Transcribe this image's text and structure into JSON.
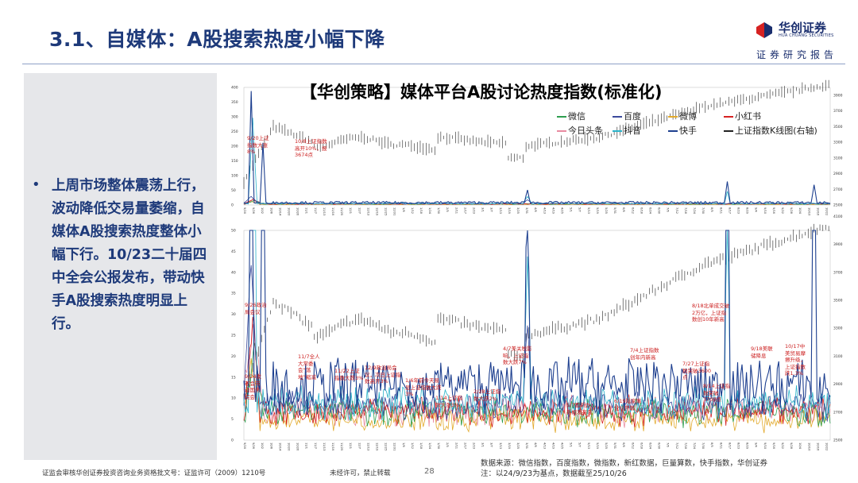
{
  "slide": {
    "title": "3.1、自媒体：A股搜索热度小幅下降",
    "logo": {
      "name": "华创证券",
      "subname": "HUA CHUANG SECURITIES"
    },
    "report_tag": "证券研究报告",
    "bullet_symbol": "•",
    "summary": "上周市场整体震荡上行，波动降低交易量萎缩，自媒体A股搜索热度整体小幅下行。10/23二十届四中全会公报发布，带动快手A股搜索热度明显上行。",
    "footer": {
      "license": "证监会审核华创证券投资咨询业务资格批文号：证监许可（2009）1210号",
      "notice": "未经许可，禁止转载",
      "page": "28",
      "source": "数据来源：微信指数，百度指数，微指数，新红数据，巨量算数，快手指数，华创证券",
      "note": "注：以24/9/23为基点，数据截至25/10/26"
    }
  },
  "colors": {
    "wechat": "#2e9e4f",
    "baidu": "#3b4a9c",
    "weibo": "#e2a92a",
    "xiaohongshu": "#d62222",
    "toutiao": "#e88aa0",
    "douyin": "#2bb3c9",
    "kuaishou": "#1d3f8f",
    "kline": "#222222",
    "annotation": "#cc2020"
  },
  "chart_data": {
    "type": "line",
    "title": "【华创策略】媒体平台A股讨论热度指数(标准化)",
    "legend": [
      {
        "key": "wechat",
        "label": "微信"
      },
      {
        "key": "baidu",
        "label": "百度"
      },
      {
        "key": "weibo",
        "label": "微博"
      },
      {
        "key": "xiaohongshu",
        "label": "小红书"
      },
      {
        "key": "toutiao",
        "label": "今日头条"
      },
      {
        "key": "douyin",
        "label": "抖音"
      },
      {
        "key": "kuaishou",
        "label": "快手"
      },
      {
        "key": "kline",
        "label": "上证指数K线图(右轴)"
      }
    ],
    "top_panel": {
      "ylim": [
        0,
        400
      ],
      "yticks": [
        0,
        50,
        100,
        150,
        200,
        250,
        300,
        350,
        400
      ],
      "y2lim": [
        2500,
        4000
      ],
      "y2ticks": [
        2500,
        2700,
        2900,
        3100,
        3300,
        3500,
        3700,
        3900
      ],
      "annotations": [
        {
          "text": "9/20上证指数大涨8%"
        },
        {
          "text": "10/8上证指数高开10%，报3674点"
        }
      ],
      "series_peaks": [
        {
          "key": "kuaishou",
          "x": "2024-10-08",
          "y": 380
        },
        {
          "key": "douyin",
          "x": "2024-10-08",
          "y": 290
        },
        {
          "key": "kuaishou",
          "x": "2025-04-07",
          "y": 45
        },
        {
          "key": "kuaishou",
          "x": "2025-08-18",
          "y": 75
        },
        {
          "key": "kuaishou",
          "x": "2025-10-23",
          "y": 65
        }
      ]
    },
    "bottom_panel": {
      "ylim": [
        0,
        50
      ],
      "yticks": [
        0,
        5,
        10,
        15,
        20,
        25,
        30,
        35,
        40,
        45,
        50
      ],
      "y2lim": [
        2500,
        4000
      ],
      "y2ticks": [
        2500,
        2700,
        2900,
        3100,
        3300,
        3500,
        3700,
        3900,
        4100
      ],
      "annotations": [
        {
          "text": "9/26政治局会议"
        },
        {
          "text": "9/24发布会带动国务院会"
        },
        {
          "text": "11/7全人大常委会“落地”缩减"
        },
        {
          "text": "11/22上证指数大跌3%"
        },
        {
          "text": "12/9政治局会议，次日上证指数高开3%"
        },
        {
          "text": "1/6年前今天易显上证指数大跌3%"
        },
        {
          "text": "1/14上证指数大涨3%"
        },
        {
          "text": "2/28上证指数大跌2%"
        },
        {
          "text": "4/7美关税影响，上证指数大跌7%"
        },
        {
          "text": "5/7国新办新闻发布会"
        },
        {
          "text": "6/19陆家嘴论坛开幕"
        },
        {
          "text": "7/4上证指数创年内新高"
        },
        {
          "text": "7/27上证指数突破3600点"
        },
        {
          "text": "8/18北单成交破2万亿，上证指数创10年新高"
        },
        {
          "text": "8/14上证指数突破3700点"
        },
        {
          "text": "9/18美联储降息"
        },
        {
          "text": "10/17中美贸易摩擦升级，上证指数跌1.3%"
        }
      ]
    },
    "x_range": [
      "2024-09-20",
      "2025-10-26"
    ]
  }
}
